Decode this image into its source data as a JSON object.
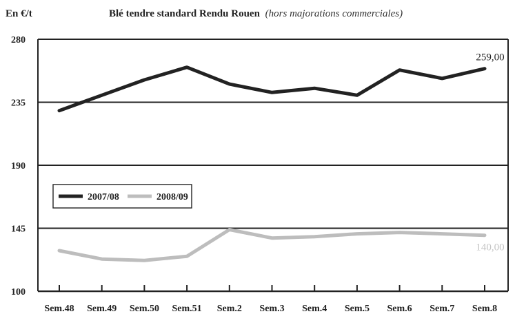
{
  "chart_data": {
    "type": "line",
    "unit_label": "En €/t",
    "title": "Blé tendre standard Rendu Rouen",
    "title_note": "(hors majorations commerciales)",
    "categories": [
      "Sem.48",
      "Sem.49",
      "Sem.50",
      "Sem.51",
      "Sem.2",
      "Sem.3",
      "Sem.4",
      "Sem.5",
      "Sem.6",
      "Sem.7",
      "Sem.8"
    ],
    "y_ticks": [
      "280",
      "235",
      "190",
      "145",
      "100"
    ],
    "ylim": [
      100,
      280
    ],
    "series": [
      {
        "name": "2007/08",
        "color": "#222222",
        "values": [
          229,
          240,
          251,
          260,
          248,
          242,
          245,
          240,
          258,
          252,
          259
        ],
        "end_label": "259,00"
      },
      {
        "name": "2008/09",
        "color": "#bdbdbd",
        "values": [
          129,
          123,
          122,
          125,
          144,
          138,
          139,
          141,
          142,
          141,
          140
        ],
        "end_label": "140,00"
      }
    ],
    "grid": true,
    "legend": "middle-left"
  }
}
